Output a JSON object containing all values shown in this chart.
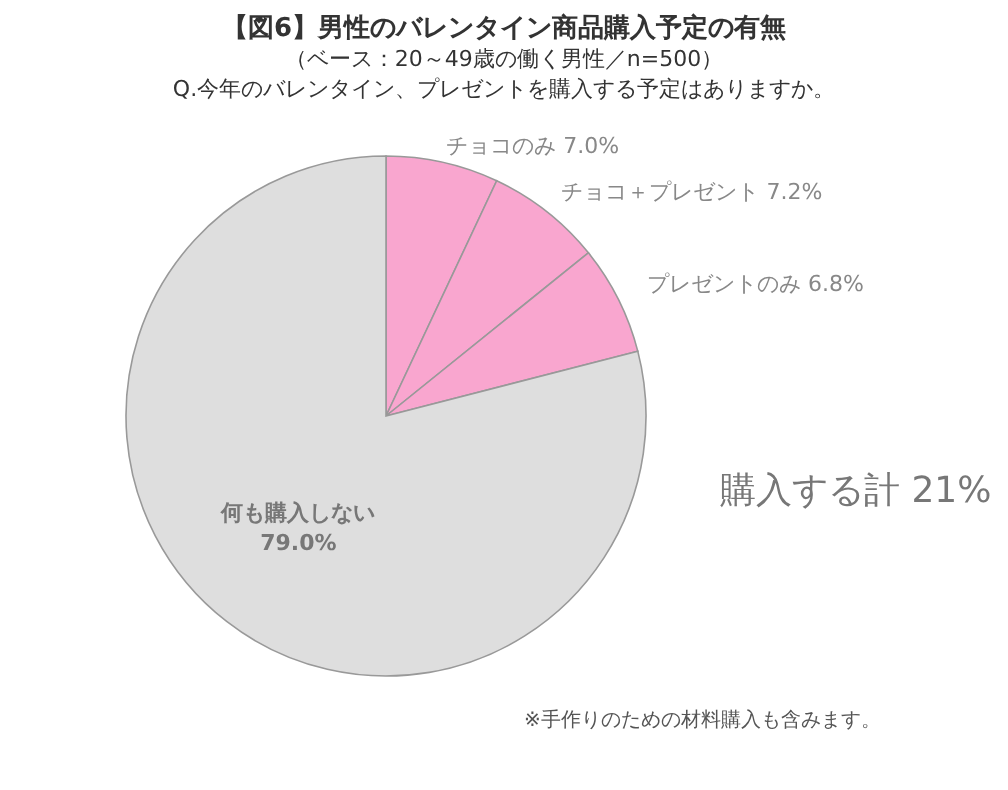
{
  "chart_data": {
    "type": "pie",
    "title": "【図6】男性のバレンタイン商品購入予定の有無",
    "subtitle": "（ベース：20～49歳の働く男性／n=500）",
    "annotations": [
      "Q.今年のバレンタイン、プレゼントを購入する予定はありますか。",
      "購入する計 21%",
      "※手作りのための材料購入も含みます。"
    ],
    "categories": [
      "チョコのみ",
      "チョコ＋プレゼント",
      "プレゼントのみ",
      "何も購入しない"
    ],
    "values": [
      7.0,
      7.2,
      6.8,
      79.0
    ],
    "value_labels": [
      "7.0%",
      "7.2%",
      "6.8%",
      "79.0%"
    ],
    "colors": [
      "#f9a6cf",
      "#f9a6cf",
      "#f9a6cf",
      "#dedede"
    ]
  }
}
